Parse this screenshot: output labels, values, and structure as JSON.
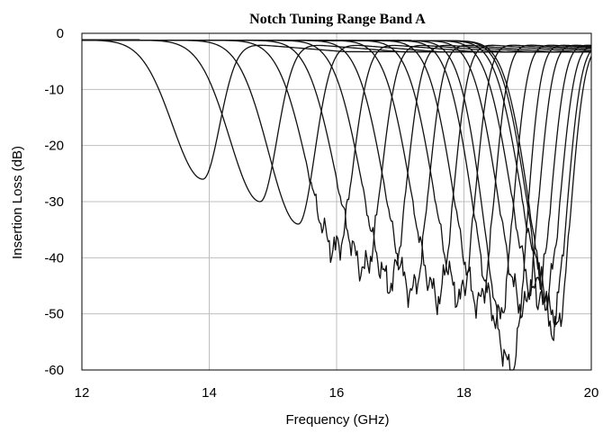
{
  "chart_data": {
    "type": "line",
    "title": "Notch Tuning Range Band A",
    "xlabel": "Frequency (GHz)",
    "ylabel": "Insertion Loss (dB)",
    "xlim": [
      12,
      20
    ],
    "ylim": [
      -60,
      0
    ],
    "xticks": [
      12,
      14,
      16,
      18,
      20
    ],
    "yticks": [
      0,
      -10,
      -20,
      -30,
      -40,
      -50,
      -60
    ],
    "grid": true,
    "legend": "none",
    "line_color": "#111111",
    "series": [
      {
        "notch_freq": 13.9,
        "min_db": -26,
        "width": 0.48
      },
      {
        "notch_freq": 14.8,
        "min_db": -30,
        "width": 0.48
      },
      {
        "notch_freq": 15.4,
        "min_db": -34,
        "width": 0.47
      },
      {
        "notch_freq": 16.0,
        "min_db": -38.5,
        "width": 0.46
      },
      {
        "notch_freq": 16.45,
        "min_db": -42,
        "width": 0.45
      },
      {
        "notch_freq": 16.85,
        "min_db": -44.5,
        "width": 0.44
      },
      {
        "notch_freq": 17.2,
        "min_db": -46,
        "width": 0.43
      },
      {
        "notch_freq": 17.6,
        "min_db": -47,
        "width": 0.42
      },
      {
        "notch_freq": 17.95,
        "min_db": -47,
        "width": 0.41
      },
      {
        "notch_freq": 18.25,
        "min_db": -48,
        "width": 0.4
      },
      {
        "notch_freq": 18.55,
        "min_db": -51,
        "width": 0.4
      },
      {
        "notch_freq": 18.75,
        "min_db": -60,
        "width": 0.4
      },
      {
        "notch_freq": 18.95,
        "min_db": -49,
        "width": 0.4
      },
      {
        "notch_freq": 19.15,
        "min_db": -47,
        "width": 0.4
      },
      {
        "notch_freq": 19.3,
        "min_db": -46,
        "width": 0.4
      },
      {
        "notch_freq": 19.4,
        "min_db": -50,
        "width": 0.4
      },
      {
        "notch_freq": 19.45,
        "min_db": -53,
        "width": 0.4
      }
    ]
  }
}
